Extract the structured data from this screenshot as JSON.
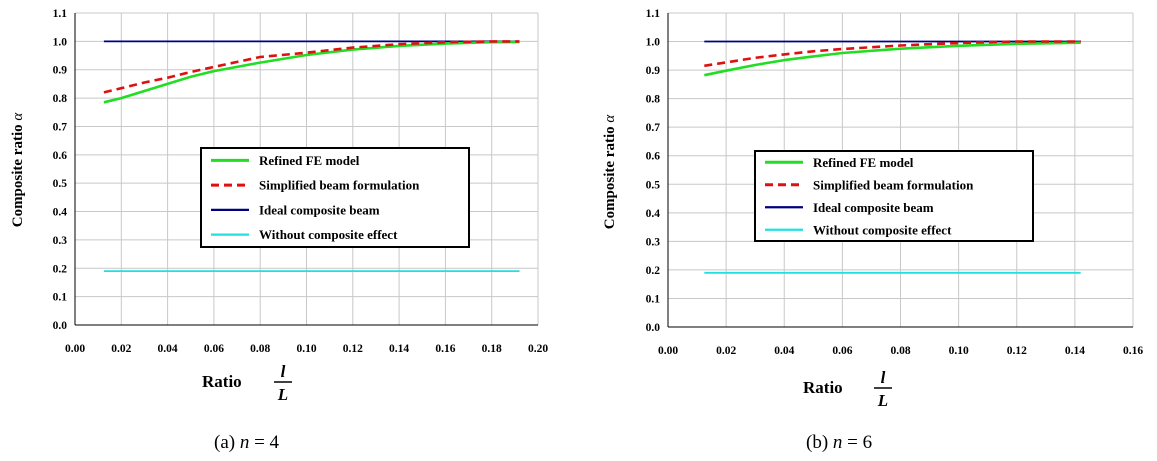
{
  "colors": {
    "refined": "#22dd22",
    "simplified": "#dd1111",
    "ideal": "#000080",
    "without": "#22e0e0",
    "grid": "#c8c8c8"
  },
  "shared": {
    "ylabel": "Composite ratio",
    "ylabel_symbol": "α",
    "xlabel": "Ratio",
    "x_num": "l",
    "x_den": "L",
    "legend": [
      "Refined FE model",
      "Simplified beam formulation",
      "Ideal composite beam",
      "Without composite effect"
    ]
  },
  "chart_data": [
    {
      "type": "line",
      "caption_prefix": "(a) ",
      "caption_var": "n",
      "caption_rest": " = 4",
      "xlim": [
        0.0,
        0.2
      ],
      "ylim": [
        0.0,
        1.1
      ],
      "xticks": [
        "0.00",
        "0.02",
        "0.04",
        "0.06",
        "0.08",
        "0.10",
        "0.12",
        "0.14",
        "0.16",
        "0.18",
        "0.20"
      ],
      "yticks": [
        "0.0",
        "0.1",
        "0.2",
        "0.3",
        "0.4",
        "0.5",
        "0.6",
        "0.7",
        "0.8",
        "0.9",
        "1.0",
        "1.1"
      ],
      "grid": true,
      "legend_position": "center",
      "series": [
        {
          "name": "Refined FE model",
          "x": [
            0.0125,
            0.02,
            0.03,
            0.04,
            0.05,
            0.06,
            0.08,
            0.1,
            0.12,
            0.14,
            0.16,
            0.18,
            0.192
          ],
          "y": [
            0.785,
            0.8,
            0.825,
            0.85,
            0.875,
            0.895,
            0.925,
            0.952,
            0.971,
            0.984,
            0.992,
            0.997,
            0.998
          ]
        },
        {
          "name": "Simplified beam formulation",
          "x": [
            0.0125,
            0.02,
            0.03,
            0.04,
            0.05,
            0.06,
            0.08,
            0.1,
            0.12,
            0.14,
            0.16,
            0.18,
            0.192
          ],
          "y": [
            0.82,
            0.835,
            0.855,
            0.872,
            0.892,
            0.91,
            0.945,
            0.96,
            0.978,
            0.99,
            0.997,
            1.0,
            1.0
          ]
        },
        {
          "name": "Ideal composite beam",
          "x": [
            0.0125,
            0.192
          ],
          "y": [
            1.0,
            1.0
          ]
        },
        {
          "name": "Without composite effect",
          "x": [
            0.0125,
            0.192
          ],
          "y": [
            0.19,
            0.19
          ]
        }
      ]
    },
    {
      "type": "line",
      "caption_prefix": "(b) ",
      "caption_var": "n",
      "caption_rest": " = 6",
      "xlim": [
        0.0,
        0.16
      ],
      "ylim": [
        0.0,
        1.1
      ],
      "xticks": [
        "0.00",
        "0.02",
        "0.04",
        "0.06",
        "0.08",
        "0.10",
        "0.12",
        "0.14",
        "0.16"
      ],
      "yticks": [
        "0.0",
        "0.1",
        "0.2",
        "0.3",
        "0.4",
        "0.5",
        "0.6",
        "0.7",
        "0.8",
        "0.9",
        "1.0",
        "1.1"
      ],
      "grid": true,
      "legend_position": "center",
      "series": [
        {
          "name": "Refined FE model",
          "x": [
            0.0125,
            0.02,
            0.03,
            0.04,
            0.05,
            0.06,
            0.08,
            0.1,
            0.12,
            0.142
          ],
          "y": [
            0.882,
            0.898,
            0.918,
            0.935,
            0.948,
            0.96,
            0.975,
            0.985,
            0.992,
            0.996
          ]
        },
        {
          "name": "Simplified beam formulation",
          "x": [
            0.0125,
            0.02,
            0.03,
            0.04,
            0.05,
            0.06,
            0.08,
            0.1,
            0.12,
            0.142
          ],
          "y": [
            0.915,
            0.927,
            0.943,
            0.955,
            0.966,
            0.974,
            0.986,
            0.995,
            1.0,
            1.0
          ]
        },
        {
          "name": "Ideal composite beam",
          "x": [
            0.0125,
            0.142
          ],
          "y": [
            1.0,
            1.0
          ]
        },
        {
          "name": "Without composite effect",
          "x": [
            0.0125,
            0.142
          ],
          "y": [
            0.19,
            0.19
          ]
        }
      ]
    }
  ]
}
